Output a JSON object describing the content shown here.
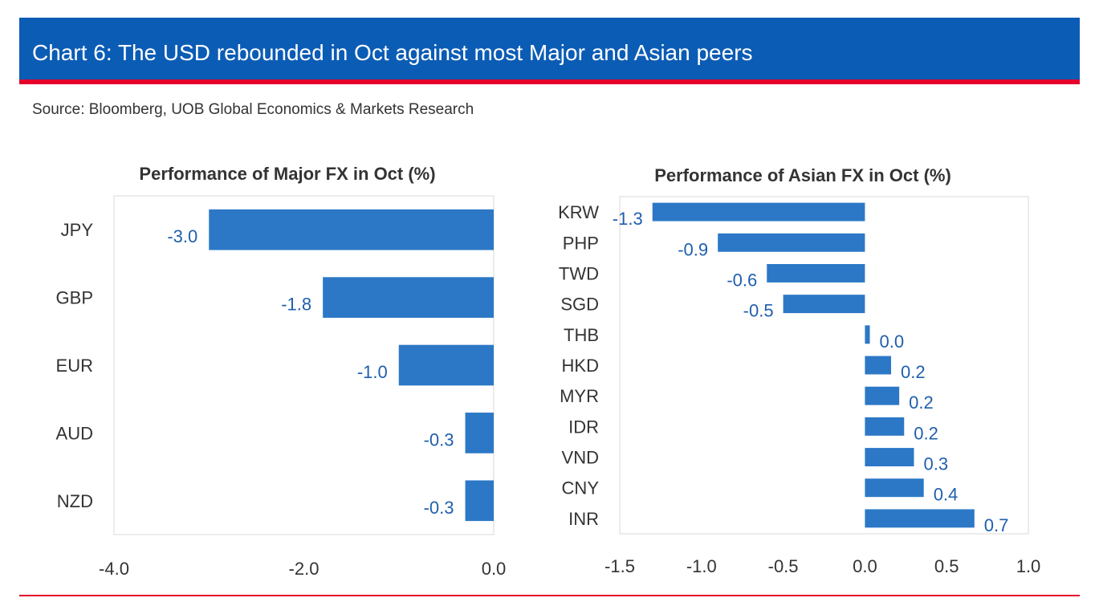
{
  "header": {
    "title": "Chart 6: The USD rebounded in Oct against most Major and Asian peers",
    "source": "Source: Bloomberg, UOB Global Economics & Markets Research"
  },
  "colors": {
    "header_bg": "#0B5CB5",
    "accent_red": "#E4002B",
    "bar": "#2C78C6",
    "data_label": "#1F5FAD",
    "axis_text": "#333333"
  },
  "chart_data": [
    {
      "type": "bar",
      "orientation": "horizontal",
      "title": "Performance of Major FX in Oct (%)",
      "categories": [
        "JPY",
        "GBP",
        "EUR",
        "AUD",
        "NZD"
      ],
      "values": [
        -3.0,
        -1.8,
        -1.0,
        -0.3,
        -0.3
      ],
      "data_labels": [
        "-3.0",
        "-1.8",
        "-1.0",
        "-0.3",
        "-0.3"
      ],
      "xlim": [
        -4.0,
        0.0
      ],
      "xticks": [
        -4.0,
        -2.0,
        0.0
      ],
      "xtick_labels": [
        "-4.0",
        "-2.0",
        "0.0"
      ],
      "xlabel": "",
      "ylabel": "",
      "grid": false
    },
    {
      "type": "bar",
      "orientation": "horizontal",
      "title": "Performance of Asian FX in Oct (%)",
      "categories": [
        "KRW",
        "PHP",
        "TWD",
        "SGD",
        "THB",
        "HKD",
        "MYR",
        "IDR",
        "VND",
        "CNY",
        "INR"
      ],
      "values": [
        -1.3,
        -0.9,
        -0.6,
        -0.5,
        0.03,
        0.16,
        0.21,
        0.24,
        0.3,
        0.36,
        0.67
      ],
      "data_labels": [
        "-1.3",
        "-0.9",
        "-0.6",
        "-0.5",
        "0.0",
        "0.2",
        "0.2",
        "0.2",
        "0.3",
        "0.4",
        "0.7"
      ],
      "xlim": [
        -1.5,
        1.0
      ],
      "xticks": [
        -1.5,
        -1.0,
        -0.5,
        0.0,
        0.5,
        1.0
      ],
      "xtick_labels": [
        "-1.5",
        "-1.0",
        "-0.5",
        "0.0",
        "0.5",
        "1.0"
      ],
      "xlabel": "",
      "ylabel": "",
      "grid": false
    }
  ]
}
